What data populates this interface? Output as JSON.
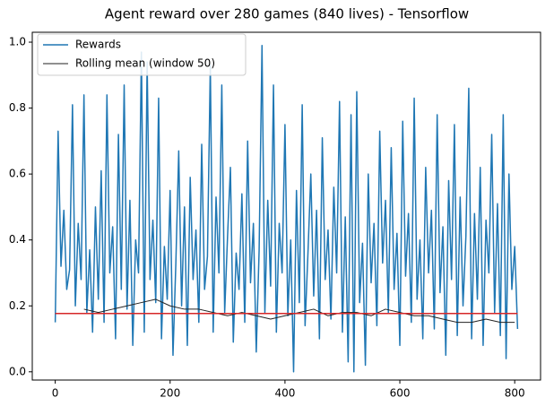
{
  "chart_data": {
    "type": "line",
    "title": "Agent reward over 280 games (840 lives) - Tensorflow",
    "xlim": [
      -40,
      845
    ],
    "ylim": [
      -0.025,
      1.03
    ],
    "xticks": [
      0,
      200,
      400,
      600,
      800
    ],
    "yticks": [
      {
        "value": 0,
        "label": "0.0"
      },
      {
        "value": 0.2,
        "label": "0.2"
      },
      {
        "value": 0.4,
        "label": "0.4"
      },
      {
        "value": 0.6,
        "label": "0.6"
      },
      {
        "value": 0.8,
        "label": "0.8"
      },
      {
        "value": 1,
        "label": "1.0"
      }
    ],
    "legend": "upper left",
    "series": [
      {
        "name": "Rewards",
        "color": "#1f77b4",
        "width": 1.5,
        "x": [
          0,
          5,
          10,
          15,
          20,
          25,
          30,
          35,
          40,
          45,
          50,
          55,
          60,
          65,
          70,
          75,
          80,
          85,
          90,
          95,
          100,
          105,
          110,
          115,
          120,
          125,
          130,
          135,
          140,
          145,
          150,
          155,
          160,
          165,
          170,
          175,
          180,
          185,
          190,
          195,
          200,
          205,
          210,
          215,
          220,
          225,
          230,
          235,
          240,
          245,
          250,
          255,
          260,
          265,
          270,
          275,
          280,
          285,
          290,
          295,
          300,
          305,
          310,
          315,
          320,
          325,
          330,
          335,
          340,
          345,
          350,
          355,
          360,
          365,
          370,
          375,
          380,
          385,
          390,
          395,
          400,
          405,
          410,
          415,
          420,
          425,
          430,
          435,
          440,
          445,
          450,
          455,
          460,
          465,
          470,
          475,
          480,
          485,
          490,
          495,
          500,
          505,
          510,
          515,
          520,
          525,
          530,
          535,
          540,
          545,
          550,
          555,
          560,
          565,
          570,
          575,
          580,
          585,
          590,
          595,
          600,
          605,
          610,
          615,
          620,
          625,
          630,
          635,
          640,
          645,
          650,
          655,
          660,
          665,
          670,
          675,
          680,
          685,
          690,
          695,
          700,
          705,
          710,
          715,
          720,
          725,
          730,
          735,
          740,
          745,
          750,
          755,
          760,
          765,
          770,
          775,
          780,
          785,
          790,
          795,
          800,
          805
        ],
        "values": [
          0.15,
          0.73,
          0.32,
          0.49,
          0.25,
          0.31,
          0.81,
          0.2,
          0.45,
          0.28,
          0.84,
          0.18,
          0.37,
          0.12,
          0.5,
          0.22,
          0.61,
          0.15,
          0.84,
          0.3,
          0.44,
          0.1,
          0.72,
          0.25,
          0.87,
          0.19,
          0.52,
          0.08,
          0.4,
          0.3,
          0.97,
          0.12,
          0.94,
          0.28,
          0.46,
          0.21,
          0.83,
          0.1,
          0.38,
          0.22,
          0.55,
          0.05,
          0.33,
          0.67,
          0.2,
          0.5,
          0.08,
          0.59,
          0.28,
          0.43,
          0.15,
          0.69,
          0.25,
          0.35,
          0.93,
          0.12,
          0.53,
          0.3,
          0.87,
          0.18,
          0.41,
          0.62,
          0.09,
          0.36,
          0.25,
          0.54,
          0.15,
          0.7,
          0.27,
          0.45,
          0.06,
          0.37,
          0.99,
          0.18,
          0.52,
          0.26,
          0.87,
          0.12,
          0.45,
          0.3,
          0.75,
          0.17,
          0.4,
          0.0,
          0.55,
          0.21,
          0.81,
          0.14,
          0.36,
          0.6,
          0.23,
          0.49,
          0.1,
          0.71,
          0.28,
          0.43,
          0.16,
          0.56,
          0.3,
          0.82,
          0.12,
          0.47,
          0.03,
          0.78,
          0.0,
          0.85,
          0.21,
          0.39,
          0.02,
          0.6,
          0.27,
          0.45,
          0.14,
          0.73,
          0.33,
          0.52,
          0.18,
          0.68,
          0.25,
          0.42,
          0.08,
          0.76,
          0.29,
          0.48,
          0.15,
          0.83,
          0.22,
          0.4,
          0.1,
          0.62,
          0.3,
          0.49,
          0.13,
          0.78,
          0.24,
          0.44,
          0.05,
          0.58,
          0.28,
          0.75,
          0.11,
          0.53,
          0.2,
          0.41,
          0.86,
          0.1,
          0.48,
          0.22,
          0.62,
          0.08,
          0.46,
          0.3,
          0.72,
          0.18,
          0.51,
          0.11,
          0.78,
          0.04,
          0.6,
          0.25,
          0.38,
          0.13
        ]
      },
      {
        "name": "Rolling mean (window 50)",
        "color": "#222222",
        "width": 1,
        "x": [
          50,
          75,
          100,
          125,
          150,
          175,
          200,
          225,
          250,
          275,
          300,
          325,
          350,
          375,
          400,
          425,
          450,
          475,
          500,
          525,
          550,
          575,
          600,
          625,
          650,
          675,
          700,
          725,
          750,
          775,
          800
        ],
        "values": [
          0.19,
          0.18,
          0.19,
          0.2,
          0.21,
          0.22,
          0.2,
          0.19,
          0.19,
          0.18,
          0.17,
          0.18,
          0.17,
          0.16,
          0.17,
          0.18,
          0.19,
          0.17,
          0.18,
          0.18,
          0.17,
          0.19,
          0.18,
          0.17,
          0.17,
          0.16,
          0.15,
          0.15,
          0.16,
          0.15,
          0.15
        ]
      }
    ],
    "hlines": [
      {
        "y": 0.177,
        "xmin": 0,
        "xmax": 805,
        "color": "#d62728"
      }
    ]
  }
}
